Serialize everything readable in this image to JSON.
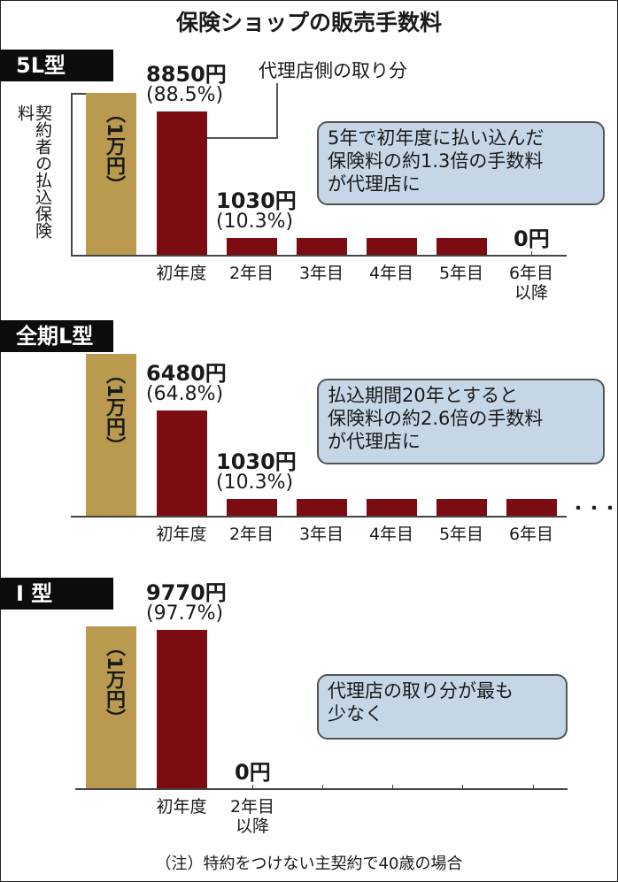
{
  "title": "保険ショップの販売手数料",
  "colors": {
    "premium": "#b99a4e",
    "commission": "#7b0d12",
    "callout": "#c5d6e6"
  },
  "y_label": "契約者の払込保険料",
  "premium_bar_label": "（1万円）",
  "leader_label": "代理店側の取り分",
  "note": "（注）特約をつけない主契約で40歳の場合",
  "chart_data": [
    {
      "type": "bar",
      "title": "5L型",
      "premium": 10000,
      "categories": [
        "初年度",
        "2年目",
        "3年目",
        "4年目",
        "5年目",
        "6年目以降"
      ],
      "values": [
        8850,
        1030,
        1030,
        1030,
        1030,
        0
      ],
      "labels": [
        {
          "amount": "8850円",
          "pct": "(88.5%)"
        },
        {
          "amount": "1030円",
          "pct": "(10.3%)"
        },
        null,
        null,
        null,
        {
          "amount": "0円",
          "pct": ""
        }
      ],
      "callout": [
        "5年で初年度に払い込んだ",
        "保険料の約1.3倍の手数料",
        "が代理店に"
      ]
    },
    {
      "type": "bar",
      "title": "全期L型",
      "premium": 10000,
      "categories": [
        "初年度",
        "2年目",
        "3年目",
        "4年目",
        "5年目",
        "6年目"
      ],
      "values": [
        6480,
        1030,
        1030,
        1030,
        1030,
        1030
      ],
      "labels": [
        {
          "amount": "6480円",
          "pct": "(64.8%)"
        },
        {
          "amount": "1030円",
          "pct": "(10.3%)"
        },
        null,
        null,
        null,
        null
      ],
      "continuation": "・・・",
      "callout": [
        "払込期間20年とすると",
        "保険料の約2.6倍の手数料",
        "が代理店に"
      ]
    },
    {
      "type": "bar",
      "title": "I 型",
      "premium": 10000,
      "categories": [
        "初年度",
        "2年目以降"
      ],
      "values": [
        9770,
        0
      ],
      "labels": [
        {
          "amount": "9770円",
          "pct": "(97.7%)"
        },
        {
          "amount": "0円",
          "pct": ""
        }
      ],
      "callout": [
        "代理店の取り分が最も",
        "少なく"
      ]
    }
  ]
}
